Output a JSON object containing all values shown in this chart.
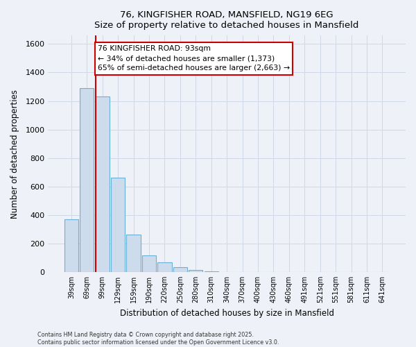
{
  "title_line1": "76, KINGFISHER ROAD, MANSFIELD, NG19 6EG",
  "title_line2": "Size of property relative to detached houses in Mansfield",
  "xlabel": "Distribution of detached houses by size in Mansfield",
  "ylabel": "Number of detached properties",
  "categories": [
    "39sqm",
    "69sqm",
    "99sqm",
    "129sqm",
    "159sqm",
    "190sqm",
    "220sqm",
    "250sqm",
    "280sqm",
    "310sqm",
    "340sqm",
    "370sqm",
    "400sqm",
    "430sqm",
    "460sqm",
    "491sqm",
    "521sqm",
    "551sqm",
    "581sqm",
    "611sqm",
    "641sqm"
  ],
  "values": [
    370,
    1290,
    1230,
    660,
    265,
    115,
    70,
    35,
    15,
    5,
    2,
    2,
    1,
    0,
    0,
    0,
    0,
    0,
    0,
    0,
    0
  ],
  "bar_color": "#ccdcec",
  "bar_edge_color": "#6baed6",
  "vline_color": "#cc0000",
  "ylim": [
    0,
    1660
  ],
  "yticks": [
    0,
    200,
    400,
    600,
    800,
    1000,
    1200,
    1400,
    1600
  ],
  "annotation_title": "76 KINGFISHER ROAD: 93sqm",
  "annotation_line2": "← 34% of detached houses are smaller (1,373)",
  "annotation_line3": "65% of semi-detached houses are larger (2,663) →",
  "annotation_box_color": "#ffffff",
  "annotation_box_edge": "#cc0000",
  "footer_line1": "Contains HM Land Registry data © Crown copyright and database right 2025.",
  "footer_line2": "Contains public sector information licensed under the Open Government Licence v3.0.",
  "background_color": "#eef2f8",
  "plot_background": "#eef2f8",
  "grid_color": "#d0d8e8"
}
